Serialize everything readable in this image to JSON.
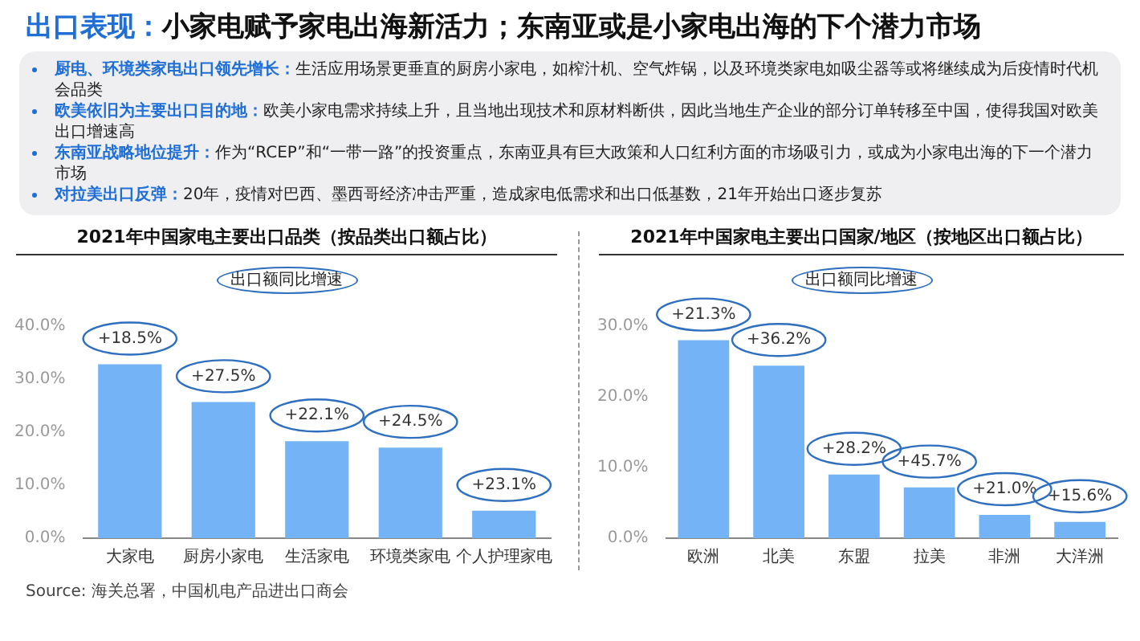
{
  "chart_data": [
    {
      "type": "other",
      "title": "出口表现：小家电赋予家电出海新活力；东南亚或是小家电出海的下个潜力市场",
      "annotations": [
        "厨电、环境类家电出口领先增长：生活应用场景更垂直的厨房小家电，如榨汁机、空气炸锅，以及环境类家电如吸尘器等或将继续成为后疫情时代机会品类",
        "欧美依旧为主要出口目的地：欧美小家电需求持续上升，且当地出现技术和原材料断供，因此当地生产企业的部分订单转移至中国，使得我国对欧美出口增速高",
        "东南亚战略地位提升：作为“RCEP”和“一带一路”的投资重点，东南亚具有巨大政策和人口红利方面的市场吸引力，或成为小家电出海的下一个潜力市场",
        "对拉美出口反弹：20年，疫情对巴西、墨西哥经济冲击严重，造成家电低需求和出口低基数，21年开始出口逐步复苏"
      ]
    },
    {
      "type": "bar",
      "title": "2021年中国家电主要出口品类（按品类出口额占比）",
      "annotations": [
        "出口额同比增速",
        {
          "text": "+18.5%",
          "x": "大家电",
          "y": 32.8
        },
        {
          "text": "+27.5%",
          "x": "厨房小家电",
          "y": 25.7
        },
        {
          "text": "+22.1%",
          "x": "生活家电",
          "y": 18.3
        },
        {
          "text": "+24.5%",
          "x": "环境类家电",
          "y": 17.1
        },
        {
          "text": "+23.1%",
          "x": "个人护理家电",
          "y": 5.2
        }
      ],
      "categories": [
        "大家电",
        "厨房小家电",
        "生活家电",
        "环境类家电",
        "个人护理家电"
      ],
      "values": [
        32.8,
        25.7,
        18.3,
        17.1,
        5.2
      ],
      "color": "#74b3f6",
      "ylim": [
        0,
        40
      ],
      "yticks": [
        {
          "value": 0,
          "label": "0.0%"
        },
        {
          "value": 10,
          "label": "10.0%"
        },
        {
          "value": 20,
          "label": "20.0%"
        },
        {
          "value": 30,
          "label": "30.0%"
        },
        {
          "value": 40,
          "label": "40.0%"
        }
      ]
    },
    {
      "type": "bar",
      "title": "2021年中国家电主要出口国家/地区（按地区出口额占比）",
      "annotations": [
        "出口额同比增速",
        {
          "text": "+21.3%",
          "x": "欧洲",
          "y": 28.0
        },
        {
          "text": "+36.2%",
          "x": "北美",
          "y": 24.4
        },
        {
          "text": "+28.2%",
          "x": "东盟",
          "y": 9.0
        },
        {
          "text": "+45.7%",
          "x": "拉美",
          "y": 7.2
        },
        {
          "text": "+21.0%",
          "x": "非洲",
          "y": 3.3
        },
        {
          "text": "+15.6%",
          "x": "大洋洲",
          "y": 2.3
        }
      ],
      "categories": [
        "欧洲",
        "北美",
        "东盟",
        "拉美",
        "非洲",
        "大洋洲"
      ],
      "values": [
        28.0,
        24.4,
        9.0,
        7.2,
        3.3,
        2.3
      ],
      "color": "#74b3f6",
      "ylim": [
        0,
        30
      ],
      "yticks": [
        {
          "value": 0,
          "label": "0.0%"
        },
        {
          "value": 10,
          "label": "10.0%"
        },
        {
          "value": 20,
          "label": "20.0%"
        },
        {
          "value": 30,
          "label": "30.0%"
        }
      ]
    },
    {
      "type": "other",
      "annotations": [
        "Source: 海关总署，中国机电产品进出口商会"
      ]
    }
  ]
}
